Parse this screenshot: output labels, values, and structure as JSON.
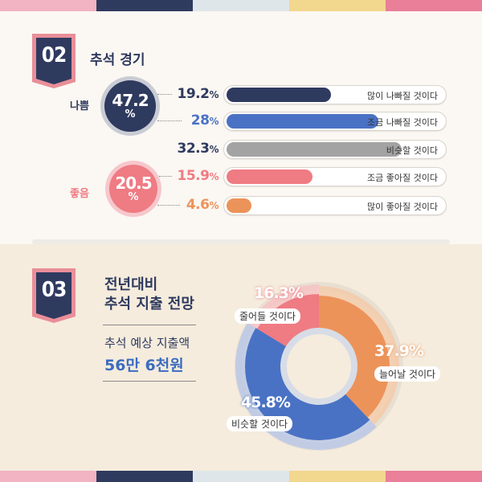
{
  "colors": {
    "stripe": [
      "#f2b3c2",
      "#2f3a5f",
      "#dfe6ea",
      "#f2d78e",
      "#e97f98"
    ],
    "navy": "#2f3a5f",
    "blue": "#4a72c4",
    "gray": "#a3a3a3",
    "pink": "#ef7b83",
    "orange": "#ec935a"
  },
  "section1": {
    "number": "02",
    "title": "추석 경기",
    "bad_label": "나쁨",
    "good_label": "좋음",
    "bad_total": {
      "value": "47.2",
      "unit": "%"
    },
    "good_total": {
      "value": "20.5",
      "unit": "%"
    }
  },
  "section2": {
    "number": "03",
    "title_line1": "전년대비",
    "title_line2": "추석 지출 전망",
    "expected_label": "추석 예상 지출액",
    "expected_value": "56만 6천원"
  },
  "chart_data": [
    {
      "type": "bar",
      "title": "추석 경기",
      "orientation": "horizontal",
      "unit": "%",
      "categories": [
        "많이 나빠질 것이다",
        "조금 나빠질 것이다",
        "비슷할 것이다",
        "조금 좋아질 것이다",
        "많이 좋아질 것이다"
      ],
      "values": [
        19.2,
        28,
        32.3,
        15.9,
        4.6
      ],
      "value_labels": [
        "19.2",
        "28",
        "32.3",
        "15.9",
        "4.6"
      ],
      "colors": [
        "#2f3a5f",
        "#4a72c4",
        "#a3a3a3",
        "#ef7b83",
        "#ec935a"
      ],
      "xlim": [
        0,
        40
      ],
      "groups": [
        {
          "name": "나쁨",
          "total": 47.2
        },
        {
          "name": "좋음",
          "total": 20.5
        }
      ]
    },
    {
      "type": "pie",
      "style": "donut",
      "title": "전년대비 추석 지출 전망",
      "unit": "%",
      "categories": [
        "늘어날 것이다",
        "비슷할 것이다",
        "줄어들 것이다"
      ],
      "values": [
        37.9,
        45.8,
        16.3
      ],
      "value_labels": [
        "37.9",
        "45.8",
        "16.3"
      ],
      "colors": [
        "#ec935a",
        "#4a72c4",
        "#ef7b83"
      ]
    }
  ]
}
